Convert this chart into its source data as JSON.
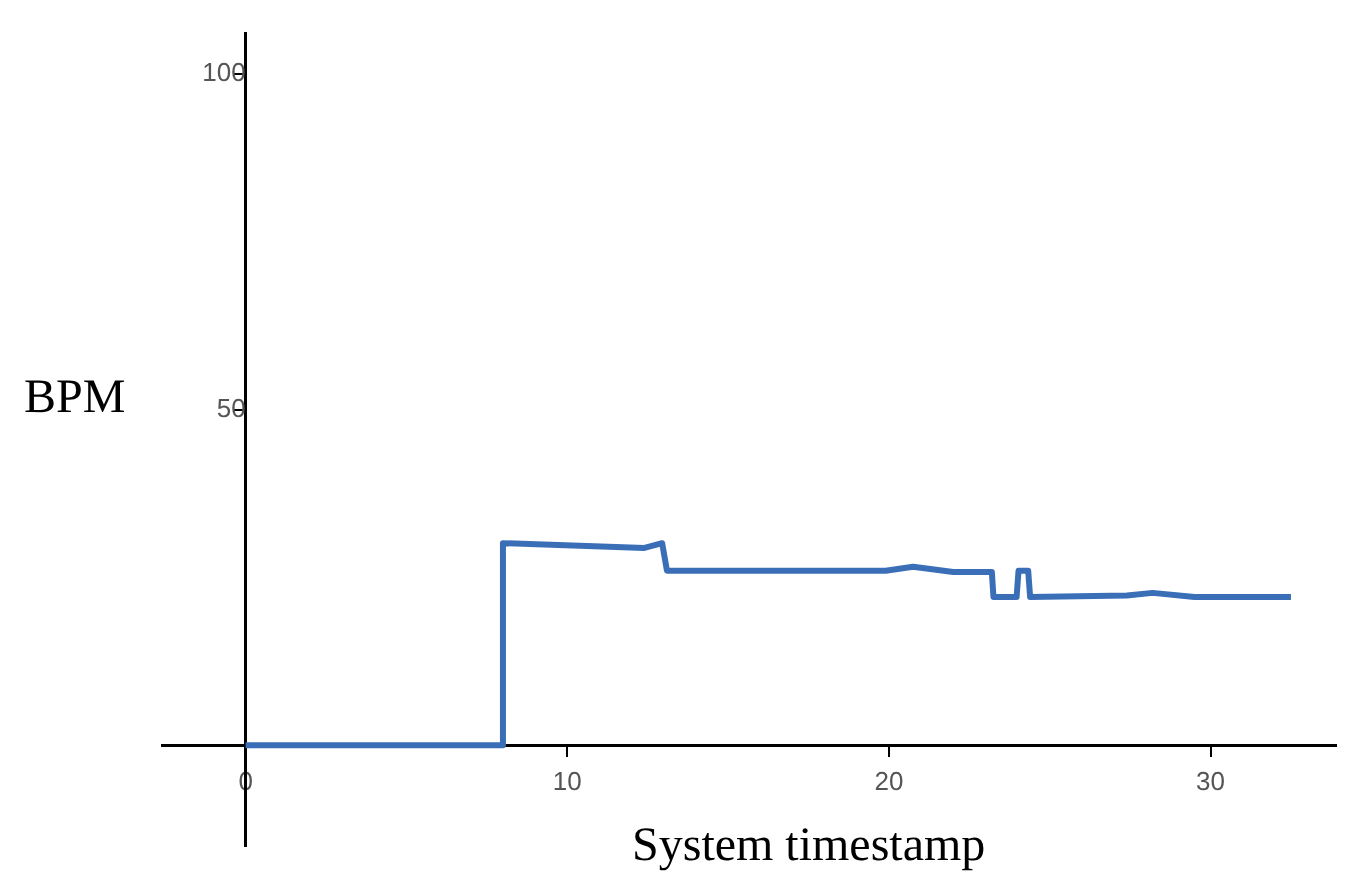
{
  "chart_data": {
    "type": "line",
    "xlabel": "System timestamp",
    "ylabel": "BPM",
    "x": [
      0,
      8.0,
      8.0,
      12.4,
      12.95,
      13.1,
      19.9,
      20.75,
      22.0,
      23.2,
      23.25,
      23.97,
      24.03,
      24.33,
      24.39,
      27.4,
      28.2,
      29.5,
      32.5
    ],
    "series": [
      {
        "color": "#3a6fb8",
        "values": [
          0,
          0,
          30.1,
          29.4,
          30.1,
          26.0,
          26.0,
          26.6,
          25.8,
          25.8,
          22.1,
          22.1,
          26.0,
          26.0,
          22.1,
          22.3,
          22.7,
          22.1,
          22.1
        ]
      }
    ],
    "xlim": [
      -2.6,
      33.9
    ],
    "ylim": [
      -15,
      106
    ],
    "xticks": [
      0,
      10,
      20,
      30
    ],
    "yticks": [
      50,
      100
    ],
    "grid": false,
    "legend": false,
    "marker": "none",
    "line_style": "solid"
  }
}
